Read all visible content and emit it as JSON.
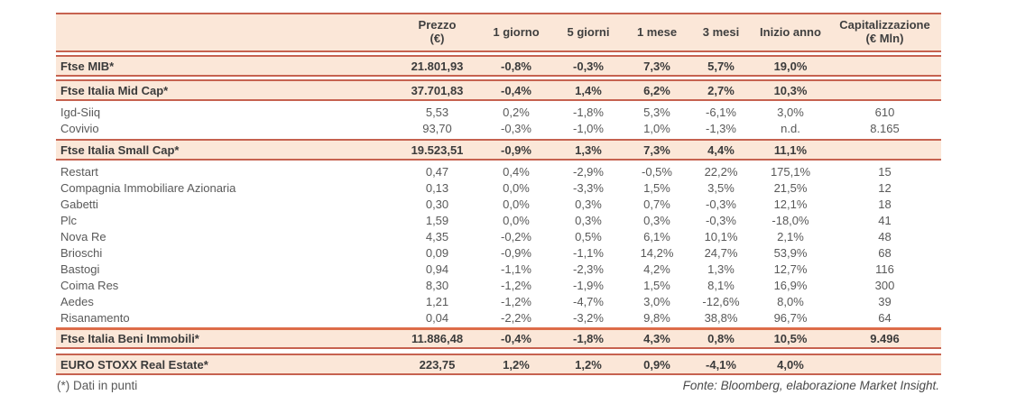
{
  "colors": {
    "row_highlight_bg": "#fbe7d8",
    "border_salmon": "#c66250",
    "border_thick_orange": "#dd6c49",
    "text_normal": "#595959",
    "text_bold": "#3b3b3b"
  },
  "table": {
    "headers": [
      {
        "line1": "",
        "line2": ""
      },
      {
        "line1": "Prezzo",
        "line2": "(€)"
      },
      {
        "line1": "1 giorno",
        "line2": ""
      },
      {
        "line1": "5 giorni",
        "line2": ""
      },
      {
        "line1": "1 mese",
        "line2": ""
      },
      {
        "line1": "3 mesi",
        "line2": ""
      },
      {
        "line1": "Inizio anno",
        "line2": ""
      },
      {
        "line1": "Capitalizzazione",
        "line2": "(€ Mln)"
      }
    ],
    "rows": [
      {
        "name": "Ftse MIB*",
        "style": "index",
        "values": [
          "21.801,93",
          "-0,8%",
          "-0,3%",
          "7,3%",
          "5,7%",
          "19,0%",
          ""
        ]
      },
      {
        "name": "Ftse Italia Mid Cap*",
        "style": "index",
        "values": [
          "37.701,83",
          "-0,4%",
          "1,4%",
          "6,2%",
          "2,7%",
          "10,3%",
          ""
        ]
      },
      {
        "name": "Igd-Siiq",
        "style": "stock",
        "values": [
          "5,53",
          "0,2%",
          "-1,8%",
          "5,3%",
          "-6,1%",
          "3,0%",
          "610"
        ]
      },
      {
        "name": "Covivio",
        "style": "stock",
        "values": [
          "93,70",
          "-0,3%",
          "-1,0%",
          "1,0%",
          "-1,3%",
          "n.d.",
          "8.165"
        ]
      },
      {
        "name": "Ftse Italia Small Cap*",
        "style": "index",
        "values": [
          "19.523,51",
          "-0,9%",
          "1,3%",
          "7,3%",
          "4,4%",
          "11,1%",
          ""
        ]
      },
      {
        "name": "Restart",
        "style": "stock",
        "values": [
          "0,47",
          "0,4%",
          "-2,9%",
          "-0,5%",
          "22,2%",
          "175,1%",
          "15"
        ]
      },
      {
        "name": "Compagnia Immobiliare Azionaria",
        "style": "stock",
        "values": [
          "0,13",
          "0,0%",
          "-3,3%",
          "1,5%",
          "3,5%",
          "21,5%",
          "12"
        ]
      },
      {
        "name": "Gabetti",
        "style": "stock",
        "values": [
          "0,30",
          "0,0%",
          "0,3%",
          "0,7%",
          "-0,3%",
          "12,1%",
          "18"
        ]
      },
      {
        "name": "Plc",
        "style": "stock",
        "values": [
          "1,59",
          "0,0%",
          "0,3%",
          "0,3%",
          "-0,3%",
          "-18,0%",
          "41"
        ]
      },
      {
        "name": "Nova Re",
        "style": "stock",
        "values": [
          "4,35",
          "-0,2%",
          "0,5%",
          "6,1%",
          "10,1%",
          "2,1%",
          "48"
        ]
      },
      {
        "name": "Brioschi",
        "style": "stock",
        "values": [
          "0,09",
          "-0,9%",
          "-1,1%",
          "14,2%",
          "24,7%",
          "53,9%",
          "68"
        ]
      },
      {
        "name": "Bastogi",
        "style": "stock",
        "values": [
          "0,94",
          "-1,1%",
          "-2,3%",
          "4,2%",
          "1,3%",
          "12,7%",
          "116"
        ]
      },
      {
        "name": "Coima Res",
        "style": "stock",
        "values": [
          "8,30",
          "-1,2%",
          "-1,9%",
          "1,5%",
          "8,1%",
          "16,9%",
          "300"
        ]
      },
      {
        "name": "Aedes",
        "style": "stock",
        "values": [
          "1,21",
          "-1,2%",
          "-4,7%",
          "3,0%",
          "-12,6%",
          "8,0%",
          "39"
        ]
      },
      {
        "name": "Risanamento",
        "style": "stock",
        "values": [
          "0,04",
          "-2,2%",
          "-3,2%",
          "9,8%",
          "38,8%",
          "96,7%",
          "64"
        ]
      },
      {
        "name": "Ftse Italia Beni Immobili*",
        "style": "index",
        "thick_top": true,
        "values": [
          "11.886,48",
          "-0,4%",
          "-1,8%",
          "4,3%",
          "0,8%",
          "10,5%",
          "9.496"
        ]
      },
      {
        "name": "EURO STOXX Real Estate*",
        "style": "index",
        "gap_above": true,
        "values": [
          "223,75",
          "1,2%",
          "1,2%",
          "0,9%",
          "-4,1%",
          "4,0%",
          ""
        ]
      }
    ]
  },
  "footer": {
    "footnote": "(*) Dati in punti",
    "source": "Fonte: Bloomberg, elaborazione Market Insight."
  }
}
